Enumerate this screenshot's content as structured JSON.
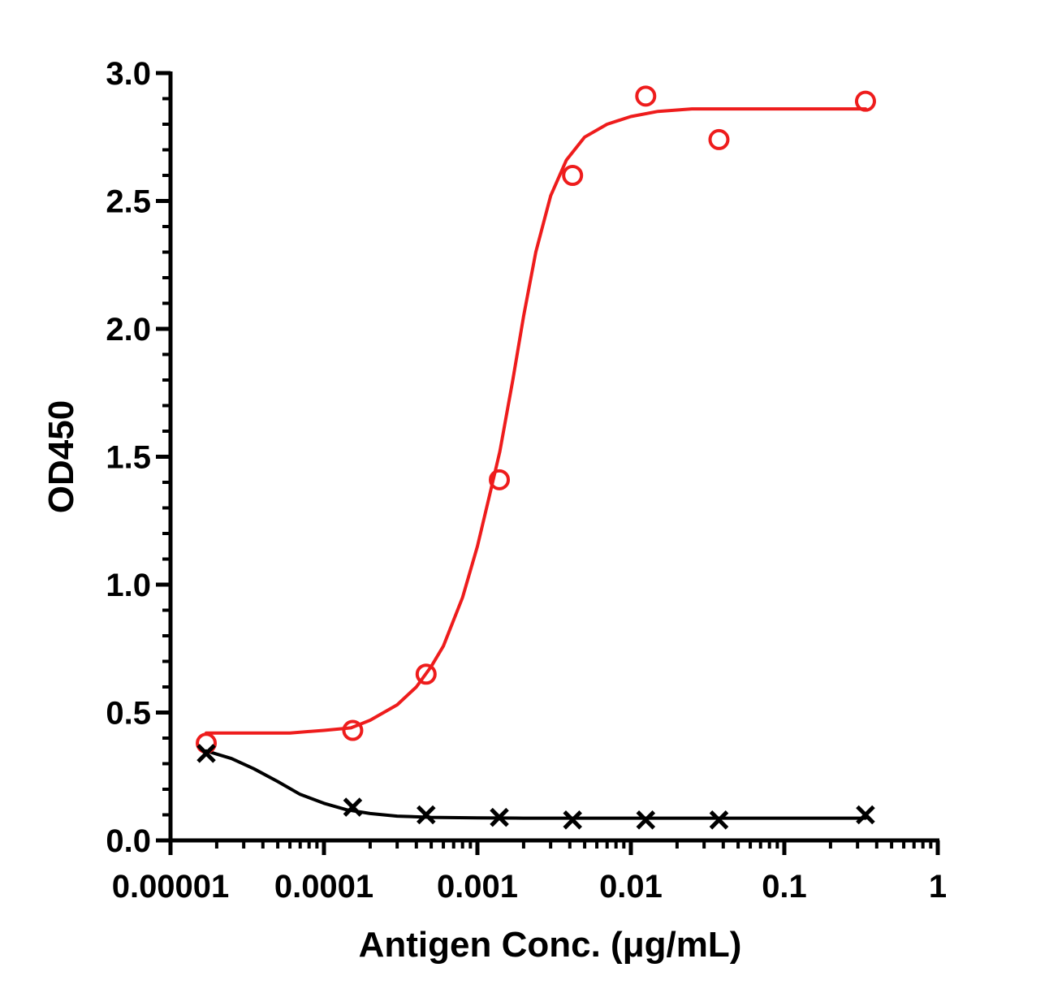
{
  "chart_data": {
    "type": "scatter",
    "xlabel": "Antigen Conc. (μg/mL)",
    "ylabel": "OD450",
    "xscale": "log",
    "xlim": [
      1e-05,
      1
    ],
    "ylim": [
      0,
      3.0
    ],
    "x_ticks": [
      1e-05,
      0.0001,
      0.001,
      0.01,
      0.1,
      1
    ],
    "x_tick_labels": [
      "0.00001",
      "0.0001",
      "0.001",
      "0.01",
      "0.1",
      "1"
    ],
    "y_ticks": [
      0,
      0.5,
      1.0,
      1.5,
      2.0,
      2.5,
      3.0
    ],
    "y_tick_labels": [
      "0.0",
      "0.5",
      "1.0",
      "1.5",
      "2.0",
      "2.5",
      "3.0"
    ],
    "grid": false,
    "legend": "none",
    "series": [
      {
        "marker": "open-circle",
        "color": "#ee1c1c",
        "fit": "sigmoidal",
        "x": [
          1.71e-05,
          0.000154,
          0.000463,
          0.00139,
          0.00417,
          0.0125,
          0.0375,
          0.338
        ],
        "y": [
          0.38,
          0.43,
          0.65,
          1.41,
          2.6,
          2.91,
          2.74,
          2.89
        ],
        "fit_curve": {
          "x": [
            1.71e-05,
            3e-05,
            6e-05,
            0.0001,
            0.00015,
            0.0002,
            0.0003,
            0.0004,
            0.0005,
            0.0006,
            0.0008,
            0.001,
            0.0012,
            0.0014,
            0.0017,
            0.002,
            0.0024,
            0.003,
            0.0038,
            0.005,
            0.007,
            0.01,
            0.015,
            0.025,
            0.05,
            0.1,
            0.338
          ],
          "y": [
            0.42,
            0.42,
            0.42,
            0.43,
            0.44,
            0.47,
            0.53,
            0.6,
            0.68,
            0.76,
            0.95,
            1.15,
            1.35,
            1.52,
            1.8,
            2.05,
            2.3,
            2.52,
            2.66,
            2.75,
            2.8,
            2.83,
            2.85,
            2.86,
            2.86,
            2.86,
            2.86
          ]
        }
      },
      {
        "marker": "x",
        "color": "#000000",
        "fit": "sigmoidal",
        "x": [
          1.71e-05,
          0.000154,
          0.000463,
          0.00139,
          0.00417,
          0.0125,
          0.0375,
          0.338
        ],
        "y": [
          0.34,
          0.13,
          0.1,
          0.09,
          0.08,
          0.08,
          0.08,
          0.1
        ],
        "fit_curve": {
          "x": [
            1.71e-05,
            2.5e-05,
            3.5e-05,
            5e-05,
            7e-05,
            0.0001,
            0.00014,
            0.0002,
            0.0003,
            0.0005,
            0.001,
            0.002,
            0.005,
            0.01,
            0.05,
            0.338
          ],
          "y": [
            0.35,
            0.32,
            0.28,
            0.23,
            0.18,
            0.145,
            0.12,
            0.105,
            0.095,
            0.09,
            0.088,
            0.087,
            0.087,
            0.087,
            0.087,
            0.087
          ]
        }
      }
    ]
  }
}
